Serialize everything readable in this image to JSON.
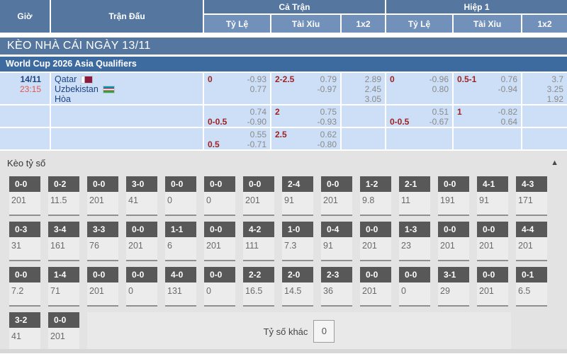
{
  "header": {
    "col_time": "Giờ",
    "col_match": "Trận Đấu",
    "group_full": "Cả Trận",
    "group_h1": "Hiệp 1",
    "sub_full": [
      "Tỷ Lệ",
      "Tài Xỉu",
      "1x2"
    ],
    "sub_h1": [
      "Tỷ Lệ",
      "Tài Xỉu",
      "1x2"
    ]
  },
  "section_bar": "KÈO NHÀ CÁI NGÀY 13/11",
  "league_bar": "World Cup 2026 Asia Qualifiers",
  "match": {
    "date": "14/11",
    "time": "23:15",
    "home": "Qatar",
    "away": "Uzbekistan",
    "draw": "Hòa",
    "home_flag": "qatar-flag-icon",
    "away_flag": "uzbekistan-flag-icon",
    "odds_rows": [
      {
        "cells": [
          {
            "lines": [
              {
                "hc": "0",
                "od": "-0.93"
              },
              {
                "hc": "",
                "od": "0.77"
              }
            ]
          },
          {
            "lines": [
              {
                "hc": "2-2.5",
                "od": "0.79"
              },
              {
                "hc": "",
                "od": "-0.97"
              }
            ]
          },
          {
            "x12": [
              "2.89",
              "2.45",
              "3.05"
            ]
          },
          {
            "lines": [
              {
                "hc": "0",
                "od": "-0.96"
              },
              {
                "hc": "",
                "od": "0.80"
              }
            ]
          },
          {
            "lines": [
              {
                "hc": "0.5-1",
                "od": "0.76"
              },
              {
                "hc": "",
                "od": "-0.94"
              }
            ]
          },
          {
            "x12": [
              "3.7",
              "3.25",
              "1.92"
            ]
          }
        ]
      },
      {
        "cells": [
          {
            "lines": [
              {
                "hc": "",
                "od": "0.74"
              },
              {
                "hc": "0-0.5",
                "od": "-0.90"
              }
            ]
          },
          {
            "lines": [
              {
                "hc": "2",
                "od": "0.75"
              },
              {
                "hc": "",
                "od": "-0.93"
              }
            ]
          },
          {
            "x12": []
          },
          {
            "lines": [
              {
                "hc": "",
                "od": "0.51"
              },
              {
                "hc": "0-0.5",
                "od": "-0.67"
              }
            ]
          },
          {
            "lines": [
              {
                "hc": "1",
                "od": "-0.82"
              },
              {
                "hc": "",
                "od": "0.64"
              }
            ]
          },
          {
            "x12": []
          }
        ]
      },
      {
        "cells": [
          {
            "lines": [
              {
                "hc": "",
                "od": "0.55"
              },
              {
                "hc": "0.5",
                "od": "-0.71"
              }
            ]
          },
          {
            "lines": [
              {
                "hc": "2.5",
                "od": "0.62"
              },
              {
                "hc": "",
                "od": "-0.80"
              }
            ]
          },
          {
            "x12": []
          },
          {
            "lines": []
          },
          {
            "lines": []
          },
          {
            "x12": []
          }
        ]
      }
    ]
  },
  "score_section": {
    "title": "Kèo tỷ số",
    "collapse_icon": "▲",
    "rows": [
      [
        {
          "s": "0-0",
          "v": "201"
        },
        {
          "s": "0-2",
          "v": "11.5"
        },
        {
          "s": "0-0",
          "v": "201"
        },
        {
          "s": "3-0",
          "v": "41"
        },
        {
          "s": "0-0",
          "v": "0"
        },
        {
          "s": "0-0",
          "v": "0"
        },
        {
          "s": "0-0",
          "v": "201"
        },
        {
          "s": "2-4",
          "v": "91"
        },
        {
          "s": "0-0",
          "v": "201"
        },
        {
          "s": "1-2",
          "v": "9.8"
        },
        {
          "s": "2-1",
          "v": "11"
        },
        {
          "s": "0-0",
          "v": "191"
        },
        {
          "s": "4-1",
          "v": "91"
        },
        {
          "s": "4-3",
          "v": "171"
        }
      ],
      [
        {
          "s": "0-3",
          "v": "31"
        },
        {
          "s": "3-4",
          "v": "161"
        },
        {
          "s": "3-3",
          "v": "76"
        },
        {
          "s": "0-0",
          "v": "201"
        },
        {
          "s": "1-1",
          "v": "6"
        },
        {
          "s": "0-0",
          "v": "201"
        },
        {
          "s": "4-2",
          "v": "111"
        },
        {
          "s": "1-0",
          "v": "7.3"
        },
        {
          "s": "0-4",
          "v": "91"
        },
        {
          "s": "0-0",
          "v": "201"
        },
        {
          "s": "1-3",
          "v": "23"
        },
        {
          "s": "0-0",
          "v": "201"
        },
        {
          "s": "0-0",
          "v": "201"
        },
        {
          "s": "4-4",
          "v": "201"
        }
      ],
      [
        {
          "s": "0-0",
          "v": "7.2"
        },
        {
          "s": "1-4",
          "v": "71"
        },
        {
          "s": "0-0",
          "v": "201"
        },
        {
          "s": "0-0",
          "v": "0"
        },
        {
          "s": "4-0",
          "v": "131"
        },
        {
          "s": "0-0",
          "v": "0"
        },
        {
          "s": "2-2",
          "v": "16.5"
        },
        {
          "s": "2-0",
          "v": "14.5"
        },
        {
          "s": "2-3",
          "v": "36"
        },
        {
          "s": "0-0",
          "v": "201"
        },
        {
          "s": "0-0",
          "v": "0"
        },
        {
          "s": "3-1",
          "v": "29"
        },
        {
          "s": "0-0",
          "v": "201"
        },
        {
          "s": "0-1",
          "v": "6.5"
        }
      ],
      [
        {
          "s": "3-2",
          "v": "41"
        },
        {
          "s": "0-0",
          "v": "201"
        }
      ]
    ],
    "other_label": "Tỷ số khác",
    "other_value": "0"
  },
  "colors": {
    "header_blue": "#54769f",
    "subheader_blue": "#7291ba",
    "league_blue": "#3e6b9f",
    "row_blue": "#cddff7",
    "handicap_red": "#9e2121",
    "time_red": "#e4554d",
    "team_navy": "#1c4380",
    "section_gray": "#e3e3e3",
    "scorebox_gray": "#585858"
  }
}
